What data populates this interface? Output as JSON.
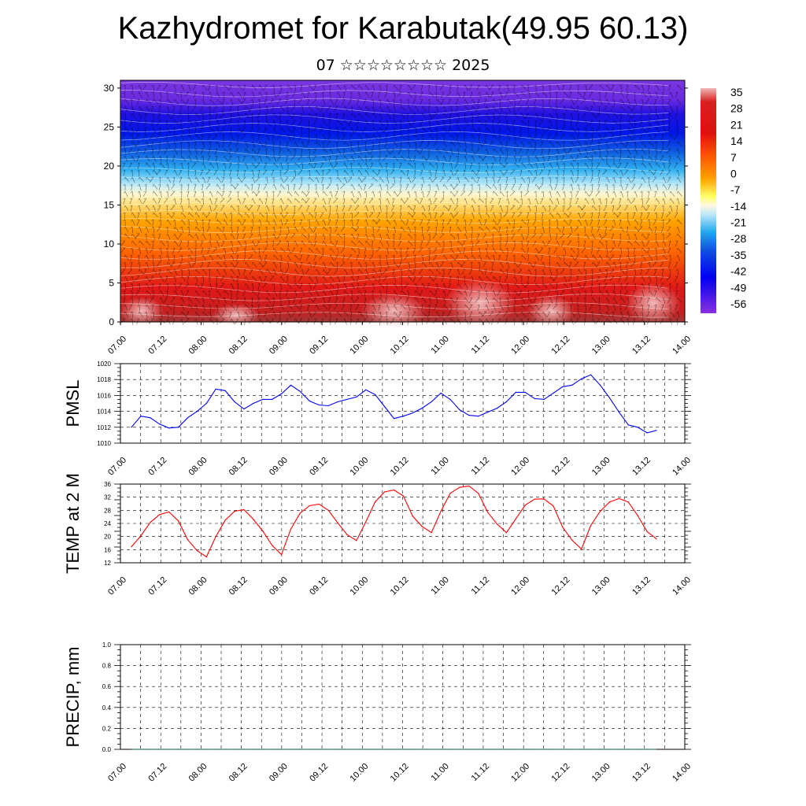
{
  "header": {
    "title": "Kazhydromet for Karabutak(49.95 60.13)",
    "subtitle": "07 ☆☆☆☆☆☆☆☆ 2025"
  },
  "colors": {
    "pmsl_line": "#0000ff",
    "temp_line": "#ff0000",
    "precip_line": "#0a5a2a"
  },
  "chart_data": [
    {
      "type": "heatmap",
      "name": "vertical-cross-section",
      "title": "",
      "x_ticks": [
        "07.00",
        "07.12",
        "08.00",
        "08.12",
        "09.00",
        "09.12",
        "10.00",
        "10.12",
        "11.00",
        "11.12",
        "12.00",
        "12.12",
        "13.00",
        "13.12",
        "14.00"
      ],
      "y_ticks": [
        "0",
        "5",
        "10",
        "15",
        "20",
        "25",
        "30"
      ],
      "ylim": [
        0,
        31
      ],
      "colorbar_labels": [
        "35",
        "28",
        "21",
        "14",
        "7",
        "0",
        "-7",
        "-14",
        "-21",
        "-28",
        "-35",
        "-42",
        "-49",
        "-56"
      ],
      "colorbar_range": [
        -63,
        38
      ],
      "overlay": "wind barbs and white contour lines"
    },
    {
      "type": "line",
      "name": "pmsl",
      "ylabel": "PMSL",
      "ylim": [
        1010,
        1020
      ],
      "y_ticks": [
        "1010",
        "1012",
        "1014",
        "1016",
        "1018",
        "1020"
      ],
      "x_ticks": [
        "07.00",
        "07.12",
        "08.00",
        "08.12",
        "09.00",
        "09.12",
        "10.00",
        "10.12",
        "11.00",
        "11.12",
        "12.00",
        "12.12",
        "13.00",
        "13.12",
        "14.00"
      ],
      "grid": true,
      "series": [
        {
          "values": [
            1012.0,
            1013.4,
            1013.2,
            1012.4,
            1011.9,
            1012.0,
            1013.2,
            1014.0,
            1015.0,
            1016.8,
            1016.6,
            1015.2,
            1014.3,
            1015.0,
            1015.5,
            1015.5,
            1016.2,
            1017.3,
            1016.5,
            1015.3,
            1014.8,
            1014.7,
            1015.2,
            1015.5,
            1015.8,
            1016.7,
            1016.1,
            1014.6,
            1013.1,
            1013.4,
            1013.8,
            1014.4,
            1015.2,
            1016.3,
            1015.5,
            1014.2,
            1013.5,
            1013.4,
            1013.9,
            1014.4,
            1015.2,
            1016.4,
            1016.4,
            1015.6,
            1015.5,
            1016.3,
            1017.1,
            1017.3,
            1018.1,
            1018.6,
            1017.3,
            1015.7,
            1013.9,
            1012.3,
            1012.0,
            1011.3,
            1011.6
          ]
        }
      ]
    },
    {
      "type": "line",
      "name": "temp-2m",
      "ylabel": "TEMP at 2 M",
      "ylim": [
        12,
        36
      ],
      "y_ticks": [
        "12",
        "16",
        "20",
        "24",
        "28",
        "32",
        "36"
      ],
      "x_ticks": [
        "07.00",
        "07.12",
        "08.00",
        "08.12",
        "09.00",
        "09.12",
        "10.00",
        "10.12",
        "11.00",
        "11.12",
        "12.00",
        "12.12",
        "13.00",
        "13.12",
        "14.00"
      ],
      "grid": true,
      "series": [
        {
          "values": [
            16.9,
            20.2,
            24.3,
            26.7,
            27.5,
            24.8,
            19.0,
            15.7,
            13.8,
            20.0,
            25.0,
            27.7,
            28.2,
            25.3,
            21.7,
            17.3,
            14.5,
            22.3,
            27.2,
            29.4,
            29.9,
            28.0,
            24.2,
            20.6,
            18.8,
            24.5,
            30.6,
            33.6,
            34.2,
            32.4,
            26.2,
            23.1,
            21.2,
            27.7,
            33.2,
            35.0,
            35.4,
            33.2,
            27.4,
            23.8,
            21.2,
            25.4,
            29.6,
            31.4,
            31.5,
            29.3,
            22.8,
            18.9,
            16.2,
            23.4,
            27.7,
            30.5,
            31.6,
            30.5,
            26.4,
            21.5,
            19.3
          ]
        }
      ]
    },
    {
      "type": "line",
      "name": "precip",
      "ylabel": "PRECIP, mm",
      "ylim": [
        0,
        1
      ],
      "y_ticks": [
        "0.0",
        "0.2",
        "0.4",
        "0.6",
        "0.8",
        "1.0"
      ],
      "x_ticks": [
        "07.00",
        "07.12",
        "08.00",
        "08.12",
        "09.00",
        "09.12",
        "10.00",
        "10.12",
        "11.00",
        "11.12",
        "12.00",
        "12.12",
        "13.00",
        "13.12",
        "14.00"
      ],
      "grid": true,
      "series": [
        {
          "values": [
            0,
            0,
            0,
            0,
            0,
            0,
            0,
            0,
            0,
            0,
            0,
            0,
            0,
            0,
            0,
            0,
            0,
            0,
            0,
            0,
            0,
            0,
            0,
            0,
            0,
            0,
            0,
            0,
            0,
            0,
            0,
            0,
            0,
            0,
            0,
            0,
            0,
            0,
            0,
            0,
            0,
            0,
            0,
            0,
            0,
            0,
            0,
            0,
            0,
            0,
            0,
            0,
            0,
            0,
            0,
            0,
            0
          ]
        }
      ]
    }
  ]
}
